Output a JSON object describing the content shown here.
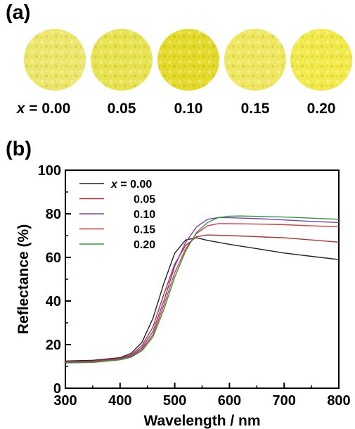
{
  "panels": {
    "a": "(a)",
    "b": "(b)"
  },
  "samples": [
    {
      "x_label": "x",
      "value": "0.00",
      "color": "#ece76a"
    },
    {
      "value": "0.05",
      "color": "#e8e350"
    },
    {
      "value": "0.10",
      "color": "#e3da2a"
    },
    {
      "value": "0.15",
      "color": "#efe760"
    },
    {
      "value": "0.20",
      "color": "#f2ea4a"
    }
  ],
  "chart_data": {
    "type": "line",
    "xlabel": "Wavelength / nm",
    "ylabel": "Reflectance (%)",
    "xlim": [
      300,
      800
    ],
    "ylim": [
      0,
      100
    ],
    "xticks": [
      300,
      400,
      500,
      600,
      700,
      800
    ],
    "yticks": [
      0,
      20,
      40,
      60,
      80,
      100
    ],
    "grid": false,
    "legend_position": "top-left",
    "legend_prefix": "x =",
    "series": [
      {
        "name": "0.00",
        "color": "#222222",
        "x": [
          300,
          350,
          400,
          420,
          440,
          460,
          480,
          500,
          520,
          540,
          560,
          600,
          650,
          700,
          750,
          800
        ],
        "y": [
          12.5,
          12.8,
          14,
          16,
          21,
          32,
          48,
          62,
          68,
          69,
          67.8,
          66,
          64,
          62,
          60.5,
          59
        ]
      },
      {
        "name": "0.05",
        "color": "#b83030",
        "x": [
          300,
          350,
          400,
          420,
          440,
          460,
          480,
          500,
          520,
          540,
          560,
          600,
          650,
          700,
          750,
          800
        ],
        "y": [
          12.2,
          12.5,
          13.7,
          15.3,
          19.5,
          28,
          43,
          57,
          65.5,
          69.5,
          70.3,
          70,
          69.5,
          69,
          68,
          67
        ]
      },
      {
        "name": "0.10",
        "color": "#7a3fb0",
        "x": [
          300,
          350,
          400,
          420,
          440,
          460,
          480,
          500,
          520,
          540,
          560,
          580,
          600,
          650,
          700,
          750,
          800
        ],
        "y": [
          12.0,
          12.2,
          13.4,
          14.8,
          18.5,
          26,
          40,
          56,
          67,
          74,
          77.5,
          78.3,
          78.2,
          77.8,
          77.2,
          76.5,
          76
        ]
      },
      {
        "name": "0.15",
        "color": "#e03c3c",
        "x": [
          300,
          350,
          400,
          420,
          440,
          460,
          480,
          500,
          520,
          540,
          560,
          580,
          600,
          650,
          700,
          750,
          800
        ],
        "y": [
          11.8,
          12.0,
          13.2,
          14.5,
          17.8,
          24.5,
          38,
          53,
          64,
          71,
          74.5,
          75.5,
          75.5,
          75.3,
          75,
          74.5,
          74
        ]
      },
      {
        "name": "0.20",
        "color": "#2e9a3e",
        "x": [
          300,
          350,
          400,
          420,
          440,
          460,
          480,
          500,
          520,
          540,
          560,
          580,
          600,
          620,
          650,
          700,
          750,
          800
        ],
        "y": [
          11.6,
          11.8,
          13.0,
          14.2,
          17.2,
          23.5,
          36,
          51,
          63,
          71.5,
          76,
          78.3,
          78.9,
          79,
          78.8,
          78.5,
          78,
          77.5
        ]
      }
    ]
  }
}
